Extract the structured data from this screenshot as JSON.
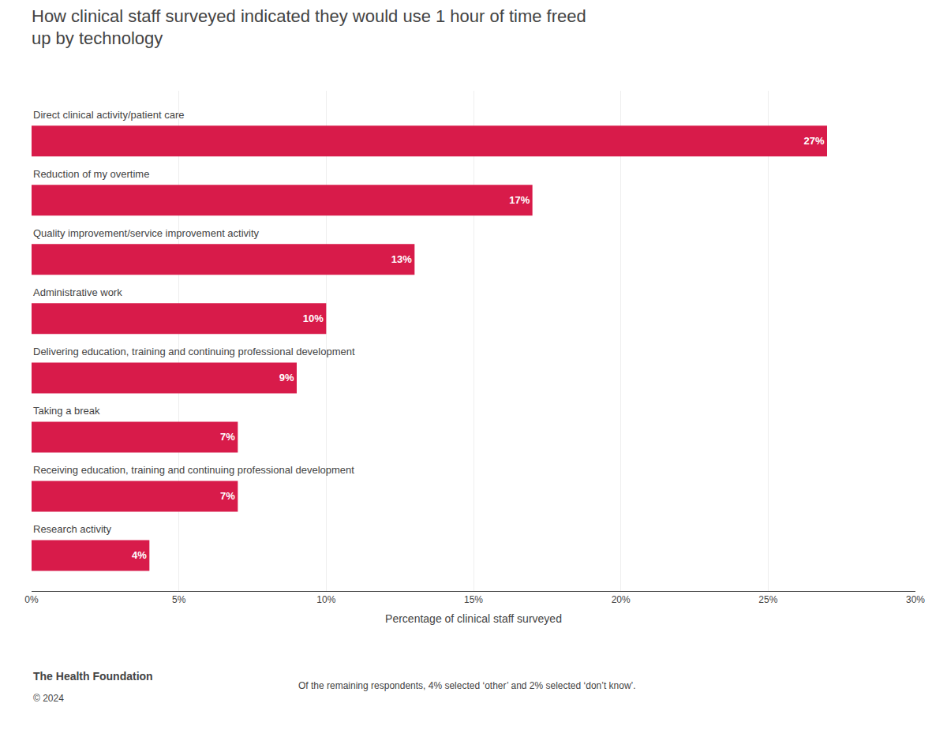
{
  "chart_data": {
    "type": "bar",
    "orientation": "horizontal",
    "title": "How clinical staff surveyed indicated they would use 1 hour of time freed\nup by technology",
    "categories": [
      "Direct clinical activity/patient care",
      "Reduction of my overtime",
      "Quality improvement/service improvement activity",
      "Administrative work",
      "Delivering education, training and continuing professional development",
      "Taking a break",
      "Receiving education, training and continuing professional development",
      "Research activity"
    ],
    "values": [
      27,
      17,
      13,
      10,
      9,
      7,
      7,
      4
    ],
    "value_labels": [
      "27%",
      "17%",
      "13%",
      "10%",
      "9%",
      "7%",
      "7%",
      "4%"
    ],
    "data_labels": true,
    "color": "#d81b4a",
    "xlabel": "Percentage of clinical staff surveyed",
    "xlim": [
      0,
      30
    ],
    "xticks": [
      {
        "value": 0,
        "label": "0%"
      },
      {
        "value": 5,
        "label": "5%"
      },
      {
        "value": 10,
        "label": "10%"
      },
      {
        "value": 15,
        "label": "15%"
      },
      {
        "value": 20,
        "label": "20%"
      },
      {
        "value": 25,
        "label": "25%"
      },
      {
        "value": 30,
        "label": "30%"
      }
    ],
    "grid": true,
    "tick_labels": "x",
    "annotations": [
      "The Health Foundation",
      "© 2024",
      "Of the remaining respondents, 4% selected ‘other’ and 2% selected ‘don’t know’."
    ]
  }
}
